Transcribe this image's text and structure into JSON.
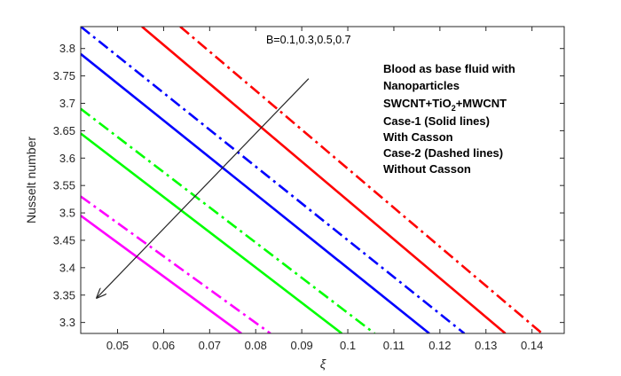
{
  "chart_data": {
    "type": "line",
    "title": "",
    "xlabel": "ξ",
    "ylabel": "Nusselt number",
    "xlim": [
      0.042,
      0.147
    ],
    "ylim": [
      3.28,
      3.84
    ],
    "xticks": [
      "0.05",
      "0.06",
      "0.07",
      "0.08",
      "0.09",
      "0.1",
      "0.11",
      "0.12",
      "0.13",
      "0.14"
    ],
    "yticks": [
      "3.3",
      "3.35",
      "3.4",
      "3.45",
      "3.5",
      "3.55",
      "3.6",
      "3.65",
      "3.7",
      "3.75",
      "3.8"
    ],
    "grid": false,
    "series": [
      {
        "color": "#ff0000",
        "style": "solid",
        "x": [
          0.0553,
          0.1342
        ],
        "y": [
          3.84,
          3.28
        ]
      },
      {
        "color": "#ff0000",
        "style": "dashdot",
        "x": [
          0.0636,
          0.1422
        ],
        "y": [
          3.84,
          3.28
        ]
      },
      {
        "color": "#0000ff",
        "style": "solid",
        "x": [
          0.042,
          0.1177
        ],
        "y": [
          3.79,
          3.28
        ]
      },
      {
        "color": "#0000ff",
        "style": "dashdot",
        "x": [
          0.042,
          0.1253
        ],
        "y": [
          3.84,
          3.28
        ]
      },
      {
        "color": "#00ff00",
        "style": "solid",
        "x": [
          0.042,
          0.0987
        ],
        "y": [
          3.645,
          3.28
        ]
      },
      {
        "color": "#00ff00",
        "style": "dashdot",
        "x": [
          0.042,
          0.1058
        ],
        "y": [
          3.69,
          3.28
        ]
      },
      {
        "color": "#ff00ff",
        "style": "solid",
        "x": [
          0.042,
          0.0769
        ],
        "y": [
          3.495,
          3.28
        ]
      },
      {
        "color": "#ff00ff",
        "style": "dashdot",
        "x": [
          0.042,
          0.0832
        ],
        "y": [
          3.53,
          3.28
        ]
      }
    ],
    "arrow": {
      "label": "B=0.1,0.3,0.5,0.7",
      "from": [
        0.0915,
        3.745
      ],
      "to": [
        0.0455,
        3.345
      ]
    },
    "annotations": [
      "Blood as base fluid with",
      "Nanoparticles",
      "SWCNT+TiO",
      "2",
      "+MWCNT",
      "Case-1 (Solid lines)",
      "With Casson",
      "Case-2 (Dashed lines)",
      "Without Casson"
    ]
  }
}
